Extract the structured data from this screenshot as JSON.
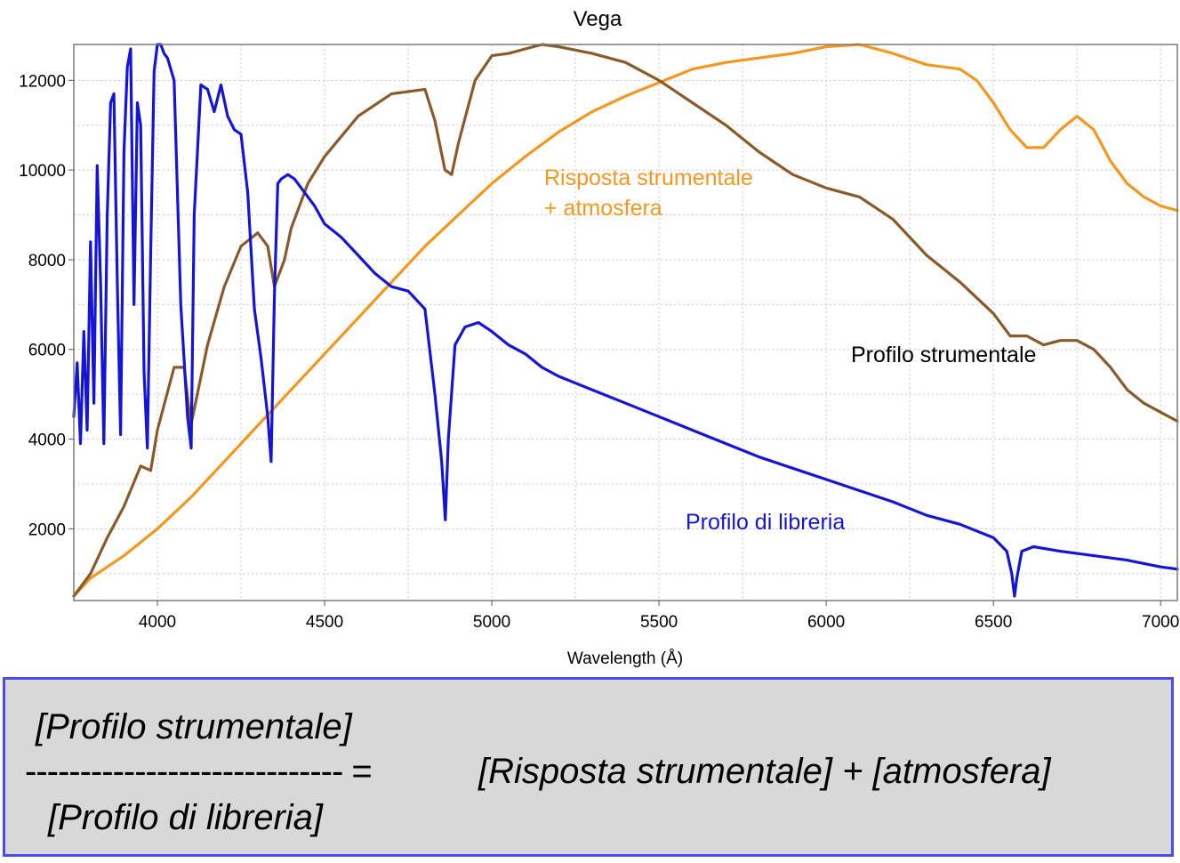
{
  "chart_data": {
    "type": "line",
    "title": "Vega",
    "xlabel": "Wavelength (Å)",
    "ylabel": "",
    "xlim": [
      3750,
      7050
    ],
    "ylim": [
      400,
      12800
    ],
    "xticks": [
      4000,
      4500,
      5000,
      5500,
      6000,
      6500,
      7000
    ],
    "yticks": [
      2000,
      4000,
      6000,
      8000,
      10000,
      12000
    ],
    "grid": true,
    "legend": "none",
    "annotations": [
      {
        "text": "Risposta strumentale",
        "series": "response",
        "color": "#f5961e"
      },
      {
        "text": "+ atmosfera",
        "series": "response",
        "color": "#f5961e"
      },
      {
        "text": "Profilo strumentale",
        "series": "instrumental",
        "color": "#000000"
      },
      {
        "text": "Profilo di libreria",
        "series": "library",
        "color": "#1515d8"
      }
    ],
    "series": [
      {
        "key": "response",
        "color": "#f5961e",
        "x": [
          3750,
          3800,
          3900,
          4000,
          4100,
          4200,
          4300,
          4400,
          4500,
          4600,
          4700,
          4800,
          4900,
          5000,
          5100,
          5200,
          5300,
          5400,
          5500,
          5600,
          5700,
          5800,
          5900,
          6000,
          6100,
          6200,
          6300,
          6400,
          6450,
          6500,
          6550,
          6600,
          6650,
          6700,
          6750,
          6800,
          6850,
          6900,
          6950,
          7000,
          7050
        ],
        "y": [
          500,
          900,
          1400,
          2000,
          2700,
          3500,
          4300,
          5100,
          5900,
          6700,
          7500,
          8300,
          9000,
          9700,
          10300,
          10850,
          11300,
          11650,
          11950,
          12250,
          12400,
          12500,
          12600,
          12750,
          12800,
          12600,
          12350,
          12250,
          12000,
          11500,
          10900,
          10500,
          10500,
          10900,
          11200,
          10900,
          10200,
          9700,
          9400,
          9200,
          9100
        ]
      },
      {
        "key": "instrumental",
        "color": "#8b5a2b",
        "x": [
          3750,
          3800,
          3850,
          3900,
          3950,
          3980,
          4000,
          4050,
          4080,
          4100,
          4150,
          4200,
          4250,
          4300,
          4330,
          4350,
          4380,
          4400,
          4450,
          4500,
          4600,
          4700,
          4800,
          4830,
          4860,
          4880,
          4900,
          4950,
          5000,
          5050,
          5100,
          5150,
          5200,
          5300,
          5400,
          5500,
          5600,
          5700,
          5800,
          5900,
          6000,
          6100,
          6200,
          6300,
          6400,
          6500,
          6550,
          6600,
          6650,
          6700,
          6750,
          6800,
          6850,
          6900,
          6950,
          7000,
          7050
        ],
        "y": [
          500,
          1000,
          1800,
          2500,
          3400,
          3300,
          4200,
          5600,
          5600,
          4300,
          6100,
          7400,
          8300,
          8600,
          8300,
          7400,
          8000,
          8700,
          9700,
          10300,
          11200,
          11700,
          11800,
          11100,
          10000,
          9900,
          10600,
          12000,
          12550,
          12600,
          12700,
          12800,
          12750,
          12600,
          12400,
          12000,
          11500,
          11000,
          10400,
          9900,
          9600,
          9400,
          8900,
          8100,
          7500,
          6800,
          6300,
          6300,
          6100,
          6200,
          6200,
          6000,
          5600,
          5100,
          4800,
          4600,
          4400
        ]
      },
      {
        "key": "library",
        "color": "#1515d8",
        "x": [
          3750,
          3760,
          3770,
          3780,
          3790,
          3800,
          3810,
          3820,
          3830,
          3840,
          3850,
          3860,
          3870,
          3880,
          3890,
          3900,
          3910,
          3920,
          3930,
          3940,
          3950,
          3960,
          3970,
          3980,
          3990,
          4000,
          4010,
          4020,
          4030,
          4050,
          4070,
          4090,
          4101,
          4110,
          4130,
          4150,
          4170,
          4190,
          4210,
          4230,
          4250,
          4270,
          4290,
          4310,
          4330,
          4340,
          4350,
          4360,
          4370,
          4390,
          4410,
          4440,
          4470,
          4500,
          4550,
          4600,
          4650,
          4700,
          4750,
          4800,
          4830,
          4850,
          4861,
          4870,
          4890,
          4920,
          4960,
          5000,
          5050,
          5100,
          5150,
          5200,
          5300,
          5400,
          5500,
          5600,
          5700,
          5800,
          5900,
          6000,
          6100,
          6200,
          6300,
          6400,
          6500,
          6540,
          6555,
          6563,
          6570,
          6585,
          6620,
          6700,
          6800,
          6900,
          7000,
          7050
        ],
        "y": [
          4500,
          5700,
          3900,
          6400,
          4200,
          8400,
          4800,
          10100,
          7500,
          3900,
          9000,
          11500,
          11700,
          7500,
          4100,
          10400,
          12300,
          12700,
          7000,
          11500,
          11000,
          5500,
          3800,
          8200,
          12200,
          12900,
          12800,
          12600,
          12500,
          12000,
          7000,
          4500,
          3800,
          9000,
          11900,
          11800,
          11300,
          11900,
          11200,
          10900,
          10800,
          9500,
          6900,
          5800,
          4500,
          3500,
          7200,
          9700,
          9800,
          9900,
          9800,
          9500,
          9200,
          8800,
          8500,
          8100,
          7700,
          7400,
          7300,
          6900,
          5000,
          3500,
          2200,
          4000,
          6100,
          6500,
          6600,
          6400,
          6100,
          5900,
          5600,
          5400,
          5100,
          4800,
          4500,
          4200,
          3900,
          3600,
          3350,
          3100,
          2850,
          2600,
          2300,
          2100,
          1800,
          1500,
          1000,
          500,
          900,
          1500,
          1600,
          1500,
          1400,
          1300,
          1150,
          1100
        ]
      }
    ]
  },
  "formula": {
    "numerator": "[Profilo strumentale]",
    "fraction_line": "----------------------------- =",
    "rhs": "[Risposta strumentale] + [atmosfera]",
    "denominator": "[Profilo di libreria]"
  }
}
